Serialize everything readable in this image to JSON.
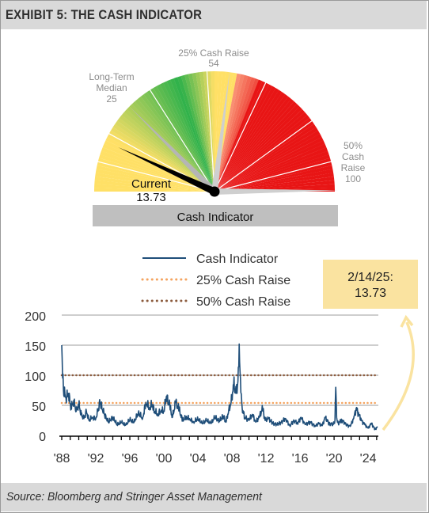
{
  "header": {
    "title": "EXHIBIT 5: THE CASH INDICATOR"
  },
  "footer": {
    "source": "Source: Bloomberg and Stringer Asset Management"
  },
  "colors": {
    "header_bg": "#d9d9d9",
    "gauge_yellow": "#ffe066",
    "gauge_green": "#2db14a",
    "gauge_red": "#e81515",
    "series_line": "#1f4e79",
    "line_25": "#f4a460",
    "line_50": "#8b5a3c",
    "callout_bg": "#fae3a0"
  },
  "gauge": {
    "min": 0,
    "max": 100,
    "current": {
      "label": "Current",
      "value_text": "13.73",
      "value": 13.73
    },
    "long_term_median": {
      "label_line1": "Long-Term",
      "label_line2": "Median",
      "value_text": "25",
      "value": 25
    },
    "cash_raise_25": {
      "label": "25% Cash Raise",
      "value_text": "54",
      "value": 54
    },
    "cash_raise_50": {
      "label_line1": "50%",
      "label_line2": "Cash",
      "label_line3": "Raise",
      "value_text": "100",
      "value": 100
    },
    "bar_label": "Cash Indicator"
  },
  "chart_data": {
    "type": "line",
    "title": "",
    "xlabel": "",
    "ylabel": "",
    "ylim": [
      0,
      200
    ],
    "yticks": [
      0,
      50,
      100,
      150,
      200
    ],
    "xlim": [
      1988,
      2025.2
    ],
    "xtick_labels": [
      "'88",
      "'92",
      "'96",
      "'00",
      "'04",
      "'08",
      "'12",
      "'16",
      "'20",
      "'24"
    ],
    "xtick_years": [
      1988,
      1992,
      1996,
      2000,
      2004,
      2008,
      2012,
      2016,
      2020,
      2024
    ],
    "legend": {
      "placement": "top-left",
      "items": [
        "Cash Indicator",
        "25% Cash Raise",
        "50% Cash Raise"
      ]
    },
    "series": [
      {
        "name": "Cash Indicator",
        "x": [
          1988.0,
          1988.2,
          1988.5,
          1988.8,
          1989.1,
          1989.4,
          1989.7,
          1990.0,
          1990.3,
          1990.6,
          1990.9,
          1991.2,
          1991.6,
          1992.0,
          1992.5,
          1993.0,
          1993.5,
          1994.0,
          1994.5,
          1995.0,
          1995.5,
          1996.0,
          1996.5,
          1997.0,
          1997.5,
          1997.9,
          1998.3,
          1998.6,
          1998.9,
          1999.3,
          1999.7,
          2000.0,
          2000.3,
          2000.7,
          2001.0,
          2001.4,
          2001.8,
          2002.2,
          2002.6,
          2003.0,
          2003.5,
          2004.0,
          2004.5,
          2005.0,
          2005.5,
          2006.0,
          2006.5,
          2007.0,
          2007.3,
          2007.6,
          2007.9,
          2008.2,
          2008.5,
          2008.7,
          2008.85,
          2009.0,
          2009.2,
          2009.5,
          2010.0,
          2010.4,
          2010.8,
          2011.2,
          2011.6,
          2011.9,
          2012.3,
          2012.8,
          2013.3,
          2013.8,
          2014.3,
          2014.8,
          2015.3,
          2015.7,
          2016.1,
          2016.6,
          2017.2,
          2017.8,
          2018.2,
          2018.6,
          2018.95,
          2019.4,
          2019.9,
          2020.1,
          2020.2,
          2020.3,
          2020.5,
          2020.9,
          2021.4,
          2021.9,
          2022.3,
          2022.6,
          2022.9,
          2023.2,
          2023.6,
          2024.0,
          2024.4,
          2024.8,
          2025.1
        ],
        "values": [
          150,
          75,
          62,
          70,
          45,
          58,
          40,
          52,
          34,
          28,
          40,
          25,
          30,
          28,
          55,
          35,
          22,
          30,
          18,
          22,
          17,
          26,
          22,
          38,
          28,
          55,
          45,
          52,
          40,
          35,
          42,
          40,
          65,
          48,
          30,
          55,
          42,
          25,
          30,
          28,
          22,
          28,
          20,
          25,
          20,
          30,
          24,
          32,
          22,
          40,
          55,
          85,
          70,
          90,
          152,
          95,
          45,
          30,
          25,
          35,
          22,
          30,
          45,
          25,
          28,
          20,
          18,
          22,
          28,
          16,
          25,
          20,
          30,
          18,
          22,
          15,
          20,
          16,
          30,
          20,
          18,
          25,
          80,
          30,
          20,
          26,
          18,
          15,
          28,
          45,
          35,
          25,
          18,
          12,
          20,
          10,
          13.73
        ]
      },
      {
        "name": "25% Cash Raise",
        "constant": 54
      },
      {
        "name": "50% Cash Raise",
        "constant": 100
      }
    ],
    "annotation": {
      "line1": "2/14/25:",
      "line2": "13.73"
    }
  }
}
